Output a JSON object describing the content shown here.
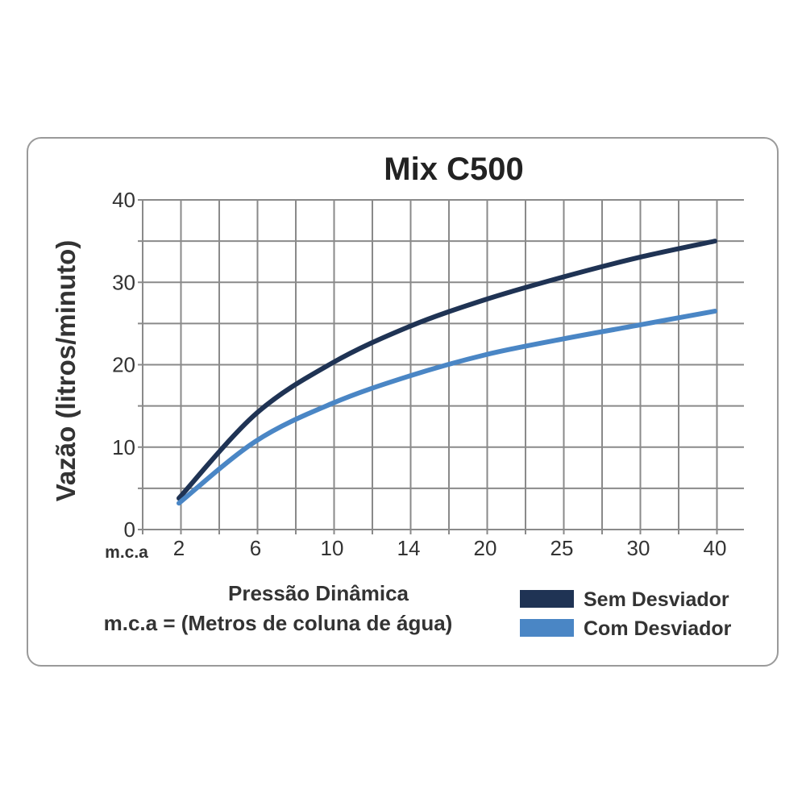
{
  "chart_data": {
    "type": "line",
    "title": "Mix C500",
    "ylabel": "Vazão (litros/minuto)",
    "xlabel_line1": "Pressão Dinâmica",
    "xlabel_line2": "m.c.a = (Metros de coluna de água)",
    "x_unit_label": "m.c.a",
    "ylim": [
      0,
      40
    ],
    "y_ticks": [
      "0",
      "10",
      "20",
      "30",
      "40"
    ],
    "x": [
      "2",
      "6",
      "10",
      "14",
      "20",
      "25",
      "30",
      "40"
    ],
    "grid": true,
    "legend_position": "bottom-right",
    "series": [
      {
        "name": "Sem Desviador",
        "color": "#1f3354",
        "values": [
          3.8,
          14.0,
          20.2,
          24.6,
          27.9,
          30.6,
          33.0,
          35.0
        ]
      },
      {
        "name": "Com Desviador",
        "color": "#4a86c5",
        "values": [
          3.2,
          10.7,
          15.3,
          18.6,
          21.2,
          23.1,
          24.8,
          26.5
        ]
      }
    ]
  }
}
